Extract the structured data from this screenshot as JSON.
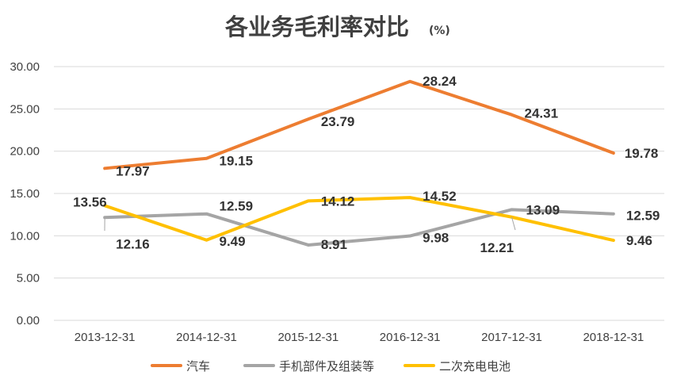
{
  "chart_data": {
    "type": "line",
    "title": "各业务毛利率对比",
    "title_unit": "(%)",
    "xlabel": "",
    "ylabel": "",
    "ylim": [
      0,
      30
    ],
    "yticks": [
      "0.00",
      "5.00",
      "10.00",
      "15.00",
      "20.00",
      "25.00",
      "30.00"
    ],
    "categories": [
      "2013-12-31",
      "2014-12-31",
      "2015-12-31",
      "2016-12-31",
      "2017-12-31",
      "2018-12-31"
    ],
    "grid": true,
    "legend_position": "bottom",
    "series": [
      {
        "name": "汽车",
        "color": "#ED7D31",
        "values": [
          17.97,
          19.15,
          23.79,
          28.24,
          24.31,
          19.78
        ],
        "labels": [
          "17.97",
          "19.15",
          "23.79",
          "28.24",
          "24.31",
          "19.78"
        ]
      },
      {
        "name": "手机部件及组装等",
        "color": "#A5A5A5",
        "values": [
          12.16,
          12.59,
          8.91,
          9.98,
          13.09,
          12.59
        ],
        "labels": [
          "12.16",
          "12.59",
          "8.91",
          "9.98",
          "13.09",
          "12.59"
        ]
      },
      {
        "name": "二次充电电池",
        "color": "#FFC000",
        "values": [
          13.56,
          9.49,
          14.12,
          14.52,
          12.21,
          9.46
        ],
        "labels": [
          "13.56",
          "9.49",
          "14.12",
          "14.52",
          "12.21",
          "9.46"
        ]
      }
    ]
  }
}
